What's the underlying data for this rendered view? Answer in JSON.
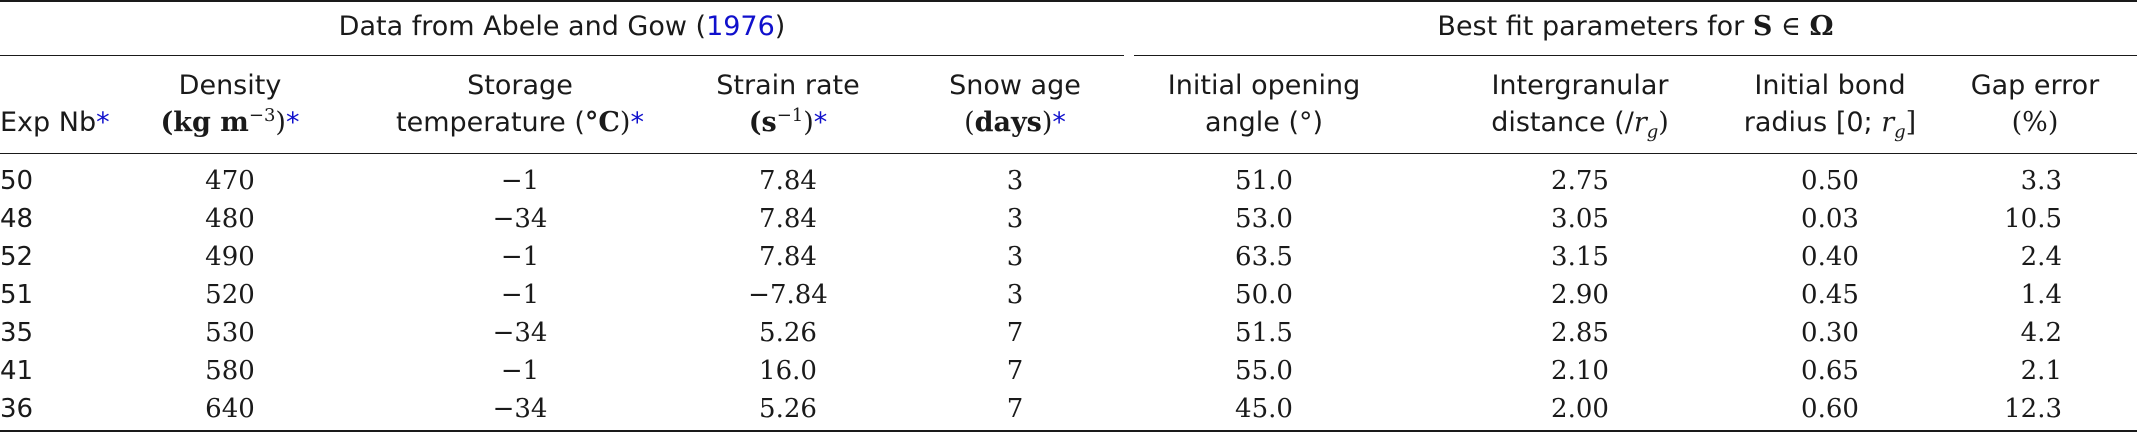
{
  "group_left": {
    "prefix": "Data from Abele and Gow (",
    "link": "1976",
    "suffix": ")"
  },
  "group_right": {
    "prefix": "Best fit parameters for ",
    "symbol_s": "S",
    "in": " ∈ ",
    "symbol_omega": "Ω"
  },
  "headers": {
    "exp_nb": "Exp Nb",
    "density_1": "Density",
    "density_unit_a": "(kg m",
    "density_unit_exp": "−3",
    "density_unit_b": ")",
    "storage_1": "Storage",
    "storage_2": "temperature (",
    "storage_unit": "°C",
    "storage_close": ")",
    "strain_1": "Strain rate",
    "strain_unit_a": "(s",
    "strain_unit_exp": "−1",
    "strain_unit_b": ")",
    "age_1": "Snow age",
    "age_unit_a": "(",
    "age_unit": "days",
    "age_unit_b": ")",
    "opening_1": "Initial opening",
    "opening_2": "angle (°)",
    "inter_1": "Intergranular",
    "inter_2": "distance (/",
    "inter_r": "r",
    "inter_g": "g",
    "inter_close": ")",
    "bond_1": "Initial bond",
    "bond_2": "radius [0; ",
    "bond_r": "r",
    "bond_g": "g",
    "bond_close": "]",
    "gap_1": "Gap error",
    "gap_2": "(%)",
    "star": "*"
  },
  "rows": [
    {
      "exp": "50",
      "density": "470",
      "temp": "−1",
      "strain": "7.84",
      "age": "3",
      "angle": "51.0",
      "dist": "2.75",
      "bond": "0.50",
      "gap": "3.3"
    },
    {
      "exp": "48",
      "density": "480",
      "temp": "−34",
      "strain": "7.84",
      "age": "3",
      "angle": "53.0",
      "dist": "3.05",
      "bond": "0.03",
      "gap": "10.5"
    },
    {
      "exp": "52",
      "density": "490",
      "temp": "−1",
      "strain": "7.84",
      "age": "3",
      "angle": "63.5",
      "dist": "3.15",
      "bond": "0.40",
      "gap": "2.4"
    },
    {
      "exp": "51",
      "density": "520",
      "temp": "−1",
      "strain": "−7.84",
      "age": "3",
      "angle": "50.0",
      "dist": "2.90",
      "bond": "0.45",
      "gap": "1.4"
    },
    {
      "exp": "35",
      "density": "530",
      "temp": "−34",
      "strain": "5.26",
      "age": "7",
      "angle": "51.5",
      "dist": "2.85",
      "bond": "0.30",
      "gap": "4.2"
    },
    {
      "exp": "41",
      "density": "580",
      "temp": "−1",
      "strain": "16.0",
      "age": "7",
      "angle": "55.0",
      "dist": "2.10",
      "bond": "0.65",
      "gap": "2.1"
    },
    {
      "exp": "36",
      "density": "640",
      "temp": "−34",
      "strain": "5.26",
      "age": "7",
      "angle": "45.0",
      "dist": "2.00",
      "bond": "0.60",
      "gap": "12.3"
    }
  ]
}
